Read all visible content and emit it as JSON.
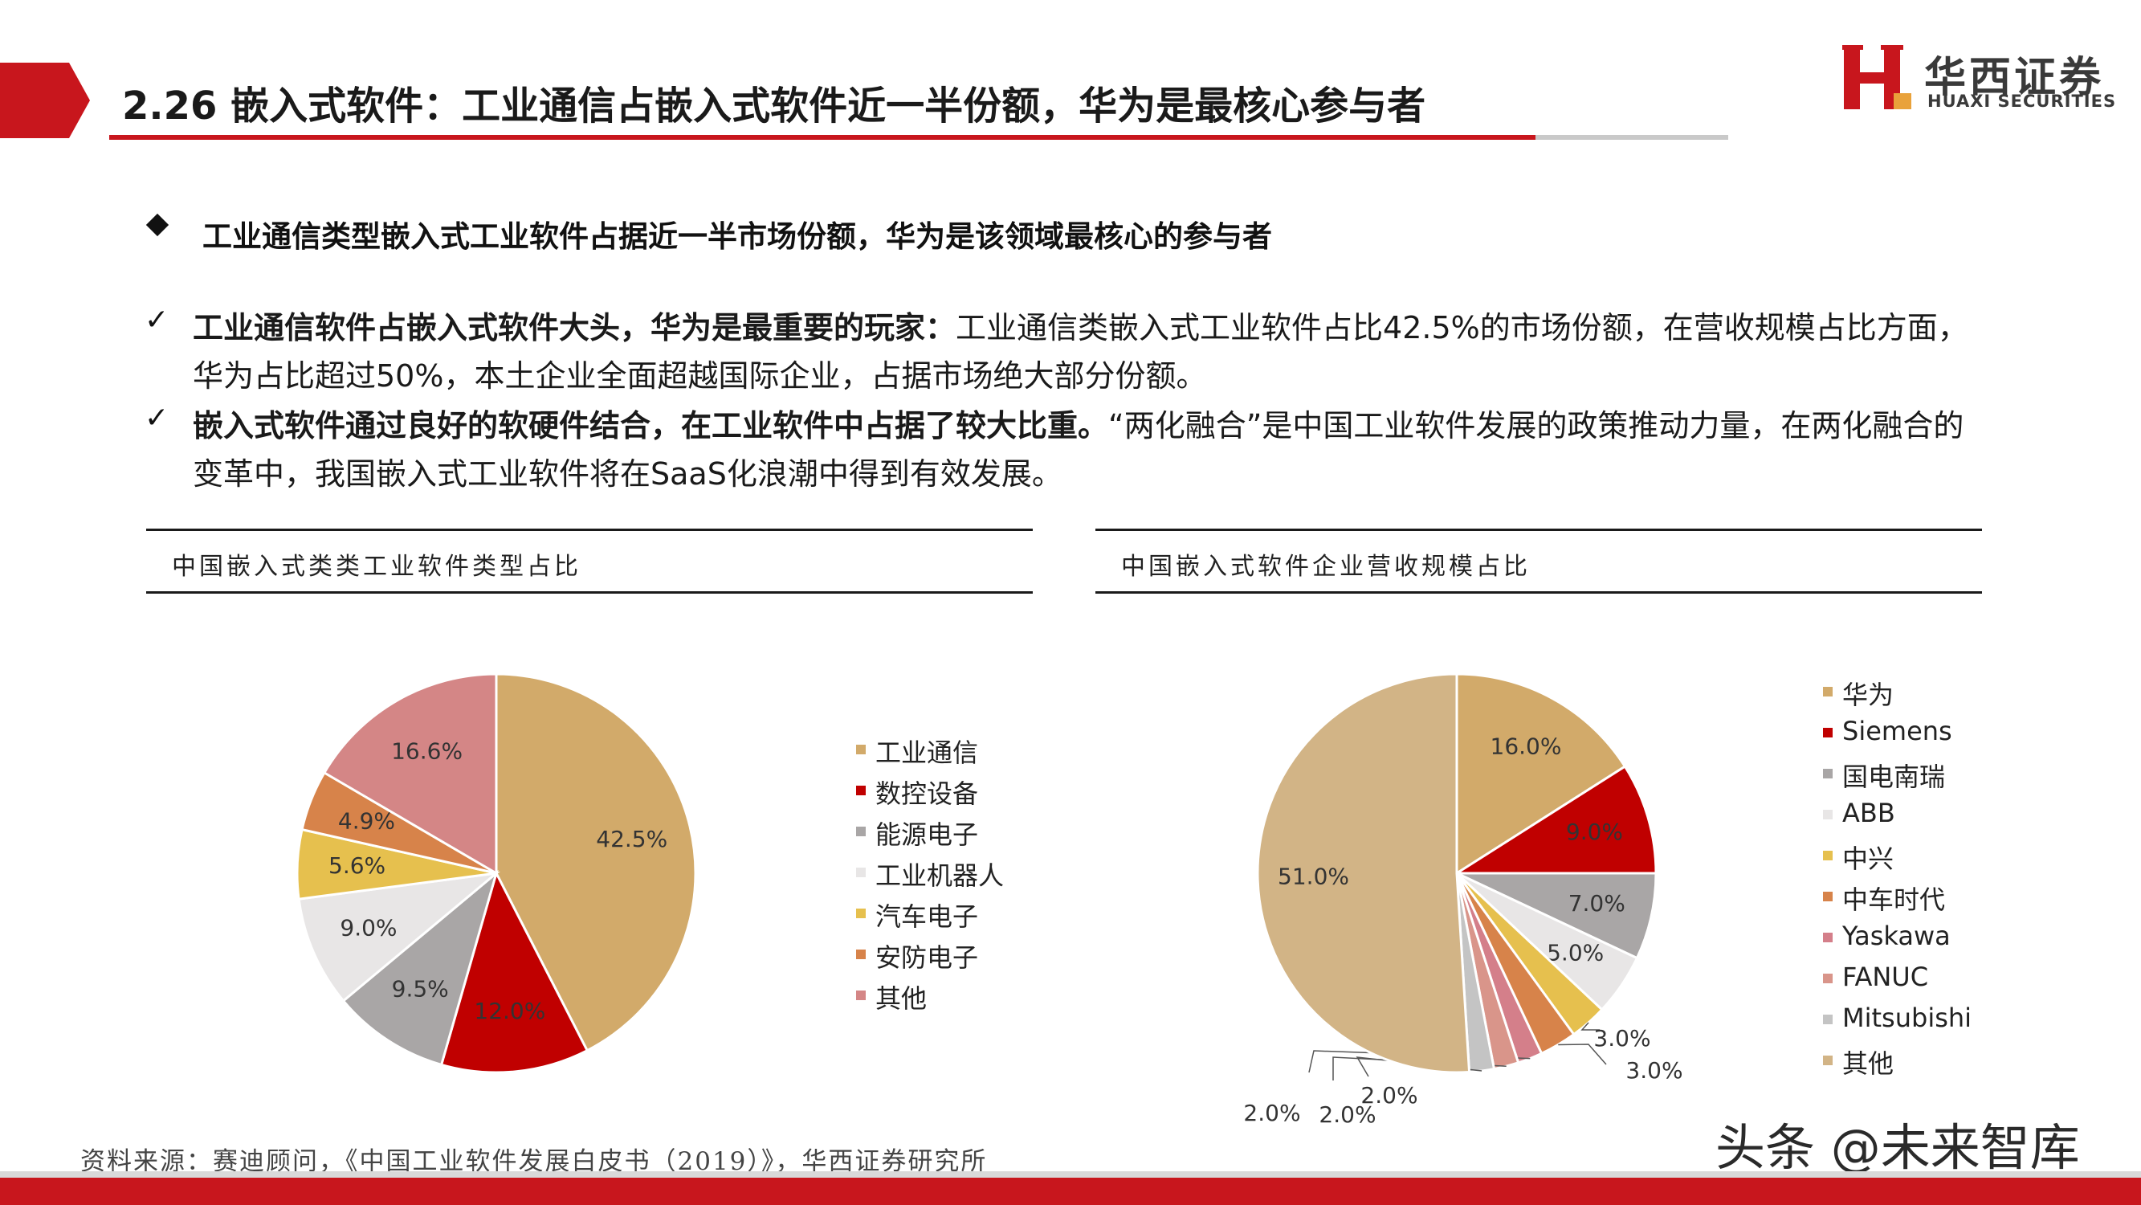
{
  "header": {
    "title": "2.26 嵌入式软件：工业通信占嵌入式软件近一半份额，华为是最核心参与者",
    "logo_cn": "华西证券",
    "logo_en": "HUAXI SECURITIES"
  },
  "summary": {
    "headline": "工业通信类型嵌入式工业软件占据近一半市场份额，华为是该领域最核心的参与者",
    "points": [
      {
        "bold": "工业通信软件占嵌入式软件大头，华为是最重要的玩家：",
        "text": "工业通信类嵌入式工业软件占比42.5%的市场份额，在营收规模占比方面，华为占比超过50%，本土企业全面超越国际企业，占据市场绝大部分份额。"
      },
      {
        "bold": "嵌入式软件通过良好的软硬件结合，在工业软件中占据了较大比重。",
        "text": "“两化融合”是中国工业软件发展的政策推动力量，在两化融合的变革中，我国嵌入式工业软件将在SaaS化浪潮中得到有效发展。"
      }
    ],
    "check_symbol": "✓"
  },
  "chart_data": [
    {
      "type": "pie",
      "title": "中国嵌入式类类工业软件类型占比",
      "categories": [
        "工业通信",
        "数控设备",
        "能源电子",
        "工业机器人",
        "汽车电子",
        "安防电子",
        "其他"
      ],
      "values": [
        42.5,
        12.0,
        9.5,
        9.0,
        5.6,
        4.9,
        16.6
      ],
      "labels": [
        "42.5%",
        "12.0%",
        "9.5%",
        "9.0%",
        "5.6%",
        "4.9%",
        "16.6%"
      ],
      "colors": [
        "#d2aa6a",
        "#c00000",
        "#a9a6a6",
        "#e8e6e6",
        "#e6c04e",
        "#d7834a",
        "#d48686"
      ],
      "legend": "right",
      "start": "12 o'clock, clockwise"
    },
    {
      "type": "pie",
      "title": "中国嵌入式软件企业营收规模占比",
      "categories": [
        "华为",
        "Siemens",
        "国电南瑞",
        "ABB",
        "中兴",
        "中车时代",
        "Yaskawa",
        "FANUC",
        "Mitsubishi",
        "其他"
      ],
      "values": [
        16.0,
        9.0,
        7.0,
        5.0,
        3.0,
        3.0,
        2.0,
        2.0,
        2.0,
        51.0
      ],
      "labels": [
        "16.0%",
        "9.0%",
        "7.0%",
        "5.0%",
        "3.0%",
        "3.0%",
        "2.0%",
        "2.0%",
        "2.0%",
        "51.0%"
      ],
      "colors": [
        "#d2aa6a",
        "#c00000",
        "#a9a6a6",
        "#e8e6e6",
        "#e6c04e",
        "#d7834a",
        "#d47f8a",
        "#d9958a",
        "#c4c4c4",
        "#d2b486"
      ],
      "legend": "right",
      "start": "12 o'clock, clockwise"
    }
  ],
  "footer": {
    "source": "资料来源：赛迪顾问，《中国工业软件发展白皮书（2019）》，华西证券研究所",
    "watermark": "头条 @未来智库"
  }
}
